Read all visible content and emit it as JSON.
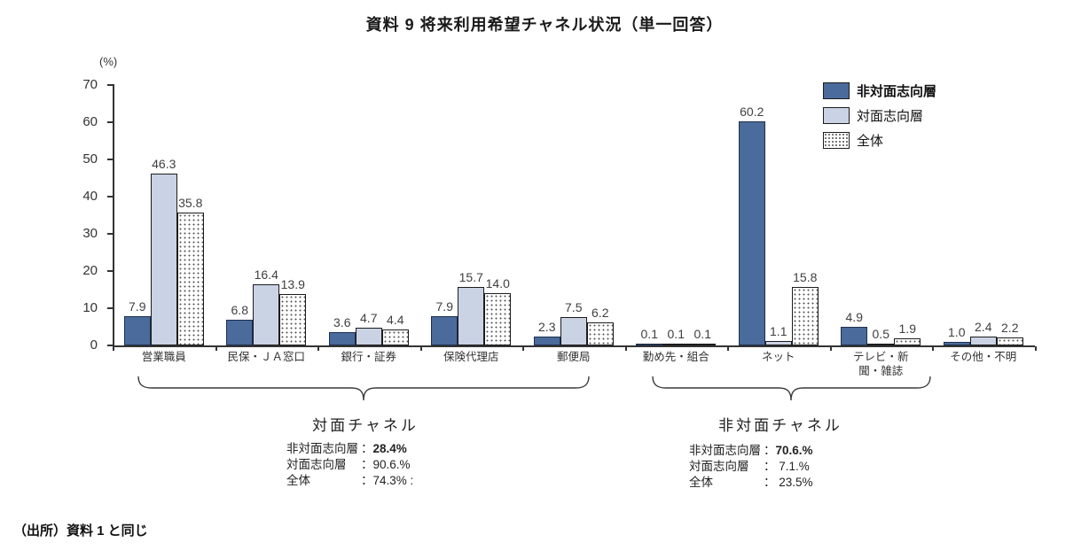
{
  "title": "資料 9 将来利用希望チャネル状況（単一回答）",
  "unit_label": "(%)",
  "source_note": "（出所）資料 1 と同じ",
  "colors": {
    "series_dark_blue": "#4a6b9b",
    "series_light_blue": "#c9d3e4",
    "series_dotted_bg": "#ffffff",
    "axis": "#333333",
    "bar_border": "#1c1c1c"
  },
  "chart_data": {
    "type": "bar",
    "title": "資料 9 将来利用希望チャネル状況（単一回答）",
    "xlabel": "",
    "ylabel": "(%)",
    "ylim": [
      0,
      70
    ],
    "yticks": [
      0,
      10,
      20,
      30,
      40,
      50,
      60,
      70
    ],
    "grid": false,
    "legend_position": "top-right",
    "categories": [
      "営業職員",
      "民保・ＪＡ窓口",
      "銀行・証券",
      "保険代理店",
      "郵便局",
      "勤め先・組合",
      "ネット",
      "テレビ・新\n聞・雑誌",
      "その他・不明"
    ],
    "series": [
      {
        "name": "非対面志向層",
        "style": "s0",
        "color": "#4a6b9b",
        "legend_bold": true,
        "values": [
          7.9,
          6.8,
          3.6,
          7.9,
          2.3,
          0.1,
          60.2,
          4.9,
          1.0
        ],
        "labels": [
          "7.9",
          "6.8",
          "3.6",
          "7.9",
          "2.3",
          "0.1",
          "60.2",
          "4.9",
          "1.0"
        ]
      },
      {
        "name": "対面志向層",
        "style": "s1",
        "color": "#c9d3e4",
        "legend_bold": false,
        "values": [
          46.3,
          16.4,
          4.7,
          15.7,
          7.5,
          0.1,
          1.1,
          0.5,
          2.4
        ],
        "labels": [
          "46.3",
          "16.4",
          "4.7",
          "15.7",
          "7.5",
          "0.1",
          "1.1",
          "0.5",
          "2.4"
        ]
      },
      {
        "name": "全体",
        "style": "s2",
        "color": "#ffffff",
        "pattern": "dots",
        "legend_bold": false,
        "values": [
          35.8,
          13.9,
          4.4,
          14.0,
          6.2,
          0.1,
          15.8,
          1.9,
          2.2
        ],
        "labels": [
          "35.8",
          "13.9",
          "4.4",
          "14.0",
          "6.2",
          "0.1",
          "15.8",
          "1.9",
          "2.2"
        ]
      }
    ]
  },
  "annotations": {
    "left": {
      "group_label": "対面チャネル",
      "separator": "：",
      "stats": [
        {
          "label": "非対面志向層",
          "value": "28.4%"
        },
        {
          "label": "対面志向層",
          "value": "90.6.%"
        },
        {
          "label": "全体",
          "value": "74.3% :"
        }
      ]
    },
    "right": {
      "group_label": "非対面チャネル",
      "separator": "：",
      "stats": [
        {
          "label": "非対面志向層",
          "value": "70.6.%"
        },
        {
          "label": "対面志向層",
          "value": " 7.1.%"
        },
        {
          "label": "全体",
          "value": " 23.5%"
        }
      ]
    }
  }
}
